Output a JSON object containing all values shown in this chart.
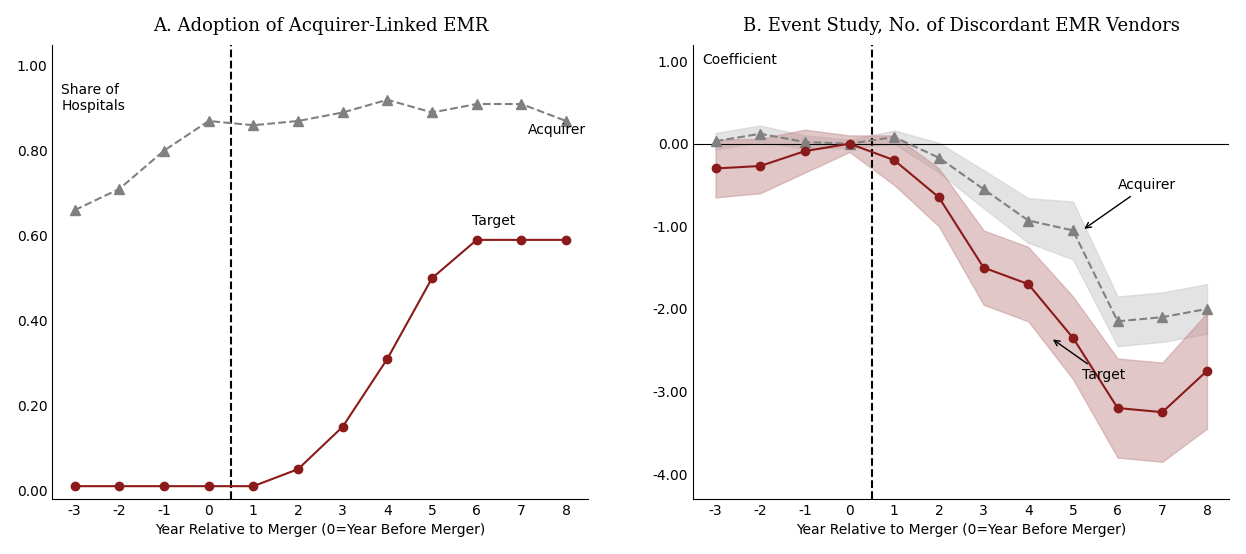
{
  "x": [
    -3,
    -2,
    -1,
    0,
    1,
    2,
    3,
    4,
    5,
    6,
    7,
    8
  ],
  "panel_a_title": "A. Adoption of Acquirer-Linked EMR",
  "panel_a_ylabel": "Share of\nHospitals",
  "panel_a_xlabel": "Year Relative to Merger (0=Year Before Merger)",
  "panel_a_ylim": [
    -0.02,
    1.05
  ],
  "panel_a_yticks": [
    0.0,
    0.2,
    0.4,
    0.6,
    0.8,
    1.0
  ],
  "panel_a_acquirer": [
    0.66,
    0.71,
    0.8,
    0.87,
    0.86,
    0.87,
    0.89,
    0.92,
    0.89,
    0.91,
    0.91,
    0.87
  ],
  "panel_a_target": [
    0.01,
    0.01,
    0.01,
    0.01,
    0.01,
    0.05,
    0.15,
    0.31,
    0.5,
    0.59,
    0.59,
    0.59
  ],
  "panel_b_title": "B. Event Study, No. of Discordant EMR Vendors",
  "panel_b_ylabel": "Coefficient",
  "panel_b_xlabel": "Year Relative to Merger (0=Year Before Merger)",
  "panel_b_ylim": [
    -4.3,
    1.2
  ],
  "panel_b_yticks": [
    -4.0,
    -3.0,
    -2.0,
    -1.0,
    0.0,
    1.0
  ],
  "panel_b_acquirer": [
    0.03,
    0.12,
    0.02,
    0.0,
    0.08,
    -0.17,
    -0.55,
    -0.93,
    -1.05,
    -2.15,
    -2.1,
    -2.0
  ],
  "panel_b_acquirer_lo": [
    -0.07,
    0.02,
    -0.06,
    -0.05,
    0.0,
    -0.35,
    -0.78,
    -1.2,
    -1.4,
    -2.45,
    -2.4,
    -2.3
  ],
  "panel_b_acquirer_hi": [
    0.13,
    0.22,
    0.1,
    0.05,
    0.16,
    0.01,
    -0.32,
    -0.66,
    -0.7,
    -1.85,
    -1.8,
    -1.7
  ],
  "panel_b_target": [
    -0.3,
    -0.27,
    -0.09,
    0.0,
    -0.2,
    -0.65,
    -1.5,
    -1.7,
    -2.35,
    -3.2,
    -3.25,
    -2.75
  ],
  "panel_b_target_lo": [
    -0.65,
    -0.6,
    -0.35,
    -0.1,
    -0.5,
    -1.0,
    -1.95,
    -2.15,
    -2.85,
    -3.8,
    -3.85,
    -3.45
  ],
  "panel_b_target_hi": [
    0.05,
    0.06,
    0.17,
    0.1,
    0.1,
    -0.3,
    -1.05,
    -1.25,
    -1.85,
    -2.6,
    -2.65,
    -2.05
  ],
  "acquirer_color": "#808080",
  "target_color": "#8B1A1A",
  "target_ci_color": "#C49090",
  "acquirer_ci_color": "#C8C8C8",
  "background_color": "#FFFFFF"
}
